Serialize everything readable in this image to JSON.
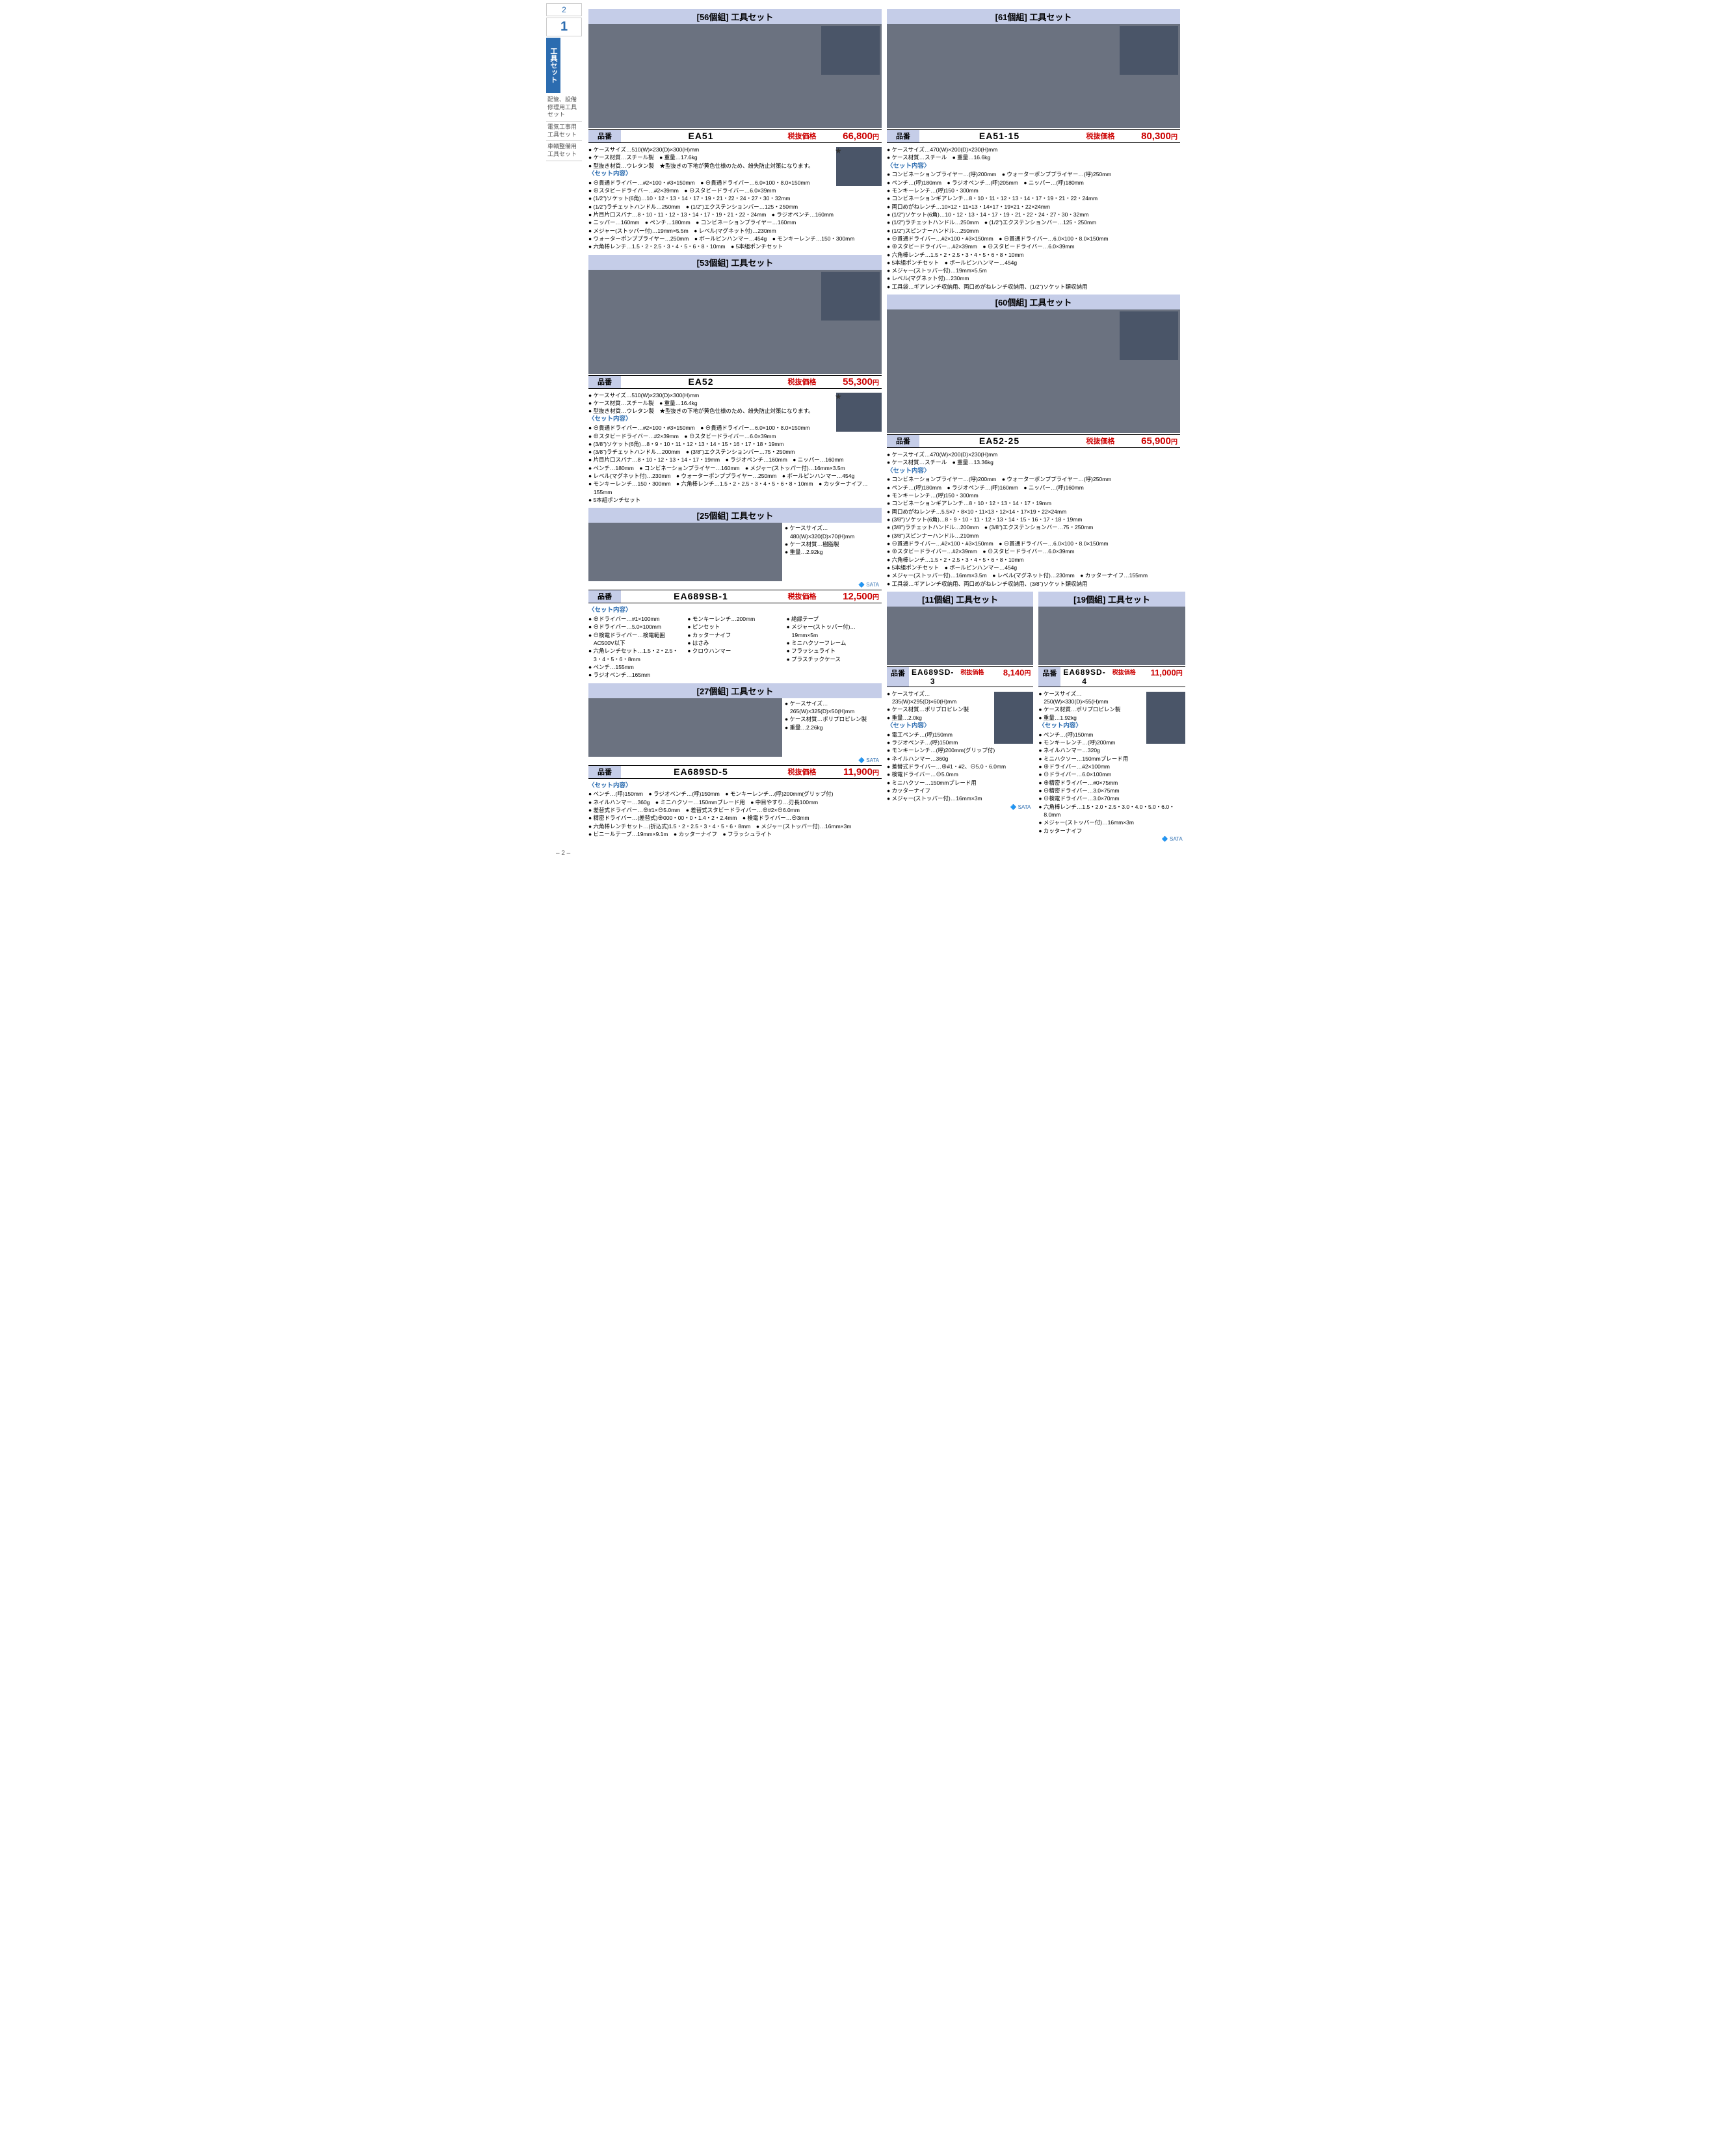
{
  "page_number": "2",
  "sidebar": {
    "num_small": "2",
    "num_big": "1",
    "category": "工具セット",
    "links": [
      "配管、設備修理用工具セット",
      "電気工事用工具セット",
      "車輌整備用工具セット"
    ]
  },
  "colors": {
    "header": "#c5cde8",
    "accent": "#2b6cb0",
    "price": "#c00"
  },
  "products": [
    {
      "title": "[56個組] 工具セット",
      "code": "EA51",
      "price": "66,800",
      "top_specs": [
        "ケースサイズ…510(W)×230(D)×300(H)mm",
        "ケース材質…スチール製　● 重量…17.6kg",
        "型抜き材質…ウレタン製　★型抜きの下地が黄色仕様のため、紛失防止対策になります。"
      ],
      "set": [
        "⊖貫通ドライバー…#2×100・#3×150mm　● ⊖貫通ドライバー…6.0×100・8.0×150mm",
        "⊕スタビードライバー…#2×39mm　● ⊖スタビードライバー…6.0×39mm",
        "(1/2\")ソケット(6角)…10・12・13・14・17・19・21・22・24・27・30・32mm",
        "(1/2\")ラチェットハンドル…250mm　● (1/2\")エクステンションバー…125・250mm",
        "片目片口スパナ…8・10・11・12・13・14・17・19・21・22・24mm　● ラジオペンチ…160mm",
        "ニッパー…160mm　● ペンチ…180mm　● コンビネーションプライヤー…160mm",
        "メジャー(ストッパー付)…19mm×5.5m　● レベル(マグネット付)…230mm",
        "ウォーターポンププライヤー…250mm　● ボールピンハンマー…454g　● モンキーレンチ…150・300mm",
        "六角棒レンチ…1.5・2・2.5・3・4・5・6・8・10mm　● 5本組ポンチセット"
      ]
    },
    {
      "title": "[61個組] 工具セット",
      "code": "EA51-15",
      "price": "80,300",
      "top_specs": [
        "ケースサイズ…470(W)×200(D)×230(H)mm",
        "ケース材質…スチール　● 重量…16.6kg"
      ],
      "set": [
        "コンビネーションプライヤー…(呼)200mm　● ウォーターポンププライヤー…(呼)250mm",
        "ペンチ…(呼)180mm　● ラジオペンチ…(呼)205mm　● ニッパー…(呼)180mm",
        "モンキーレンチ…(呼)150・300mm",
        "コンビネーションギアレンチ…8・10・11・12・13・14・17・19・21・22・24mm",
        "両口めがねレンチ…10×12・11×13・14×17・19×21・22×24mm",
        "(1/2\")ソケット(6角)…10・12・13・14・17・19・21・22・24・27・30・32mm",
        "(1/2\")ラチェットハンドル…250mm　● (1/2\")エクステンションバー…125・250mm",
        "(1/2\")スピンナーハンドル…250mm",
        "⊖貫通ドライバー…#2×100・#3×150mm　● ⊖貫通ドライバー…6.0×100・8.0×150mm",
        "⊕スタビードライバー…#2×39mm　● ⊖スタビードライバー…6.0×39mm",
        "六角棒レンチ…1.5・2・2.5・3・4・5・6・8・10mm",
        "5本組ポンチセット　● ボールピンハンマー…454g",
        "メジャー(ストッパー付)…19mm×5.5m",
        "レベル(マグネット付)…230mm",
        "工具袋…ギアレンチ収納用、両口めがねレンチ収納用、(1/2\")ソケット類収納用"
      ]
    },
    {
      "title": "[53個組] 工具セット",
      "code": "EA52",
      "price": "55,300",
      "top_specs": [
        "ケースサイズ…510(W)×230(D)×300(H)mm",
        "ケース材質…スチール製　● 重量…16.4kg",
        "型抜き材質…ウレタン製　★型抜きの下地が黄色仕様のため、紛失防止対策になります。"
      ],
      "set": [
        "⊖貫通ドライバー…#2×100・#3×150mm　● ⊖貫通ドライバー…6.0×100・8.0×150mm",
        "⊕スタビードライバー…#2×39mm　● ⊖スタビードライバー…6.0×39mm",
        "(3/8\")ソケット(6角)…8・9・10・11・12・13・14・15・16・17・18・19mm",
        "(3/8\")ラチェットハンドル…200mm　● (3/8\")エクステンションバー…75・250mm",
        "片目片口スパナ…8・10・12・13・14・17・19mm　● ラジオペンチ…160mm　● ニッパー…160mm",
        "ペンチ…180mm　● コンビネーションプライヤー…160mm　● メジャー(ストッパー付)…16mm×3.5m",
        "レベル(マグネット付)…230mm　● ウォーターポンププライヤー…250mm　● ボールピンハンマー…454g",
        "モンキーレンチ…150・300mm　● 六角棒レンチ…1.5・2・2.5・3・4・5・6・8・10mm　● カッターナイフ…155mm",
        "5本組ポンチセット"
      ]
    },
    {
      "title": "[60個組] 工具セット",
      "code": "EA52-25",
      "price": "65,900",
      "top_specs": [
        "ケースサイズ…470(W)×200(D)×230(H)mm",
        "ケース材質…スチール　● 重量…13.36kg"
      ],
      "set": [
        "コンビネーションプライヤー…(呼)200mm　● ウォーターポンププライヤー…(呼)250mm",
        "ペンチ…(呼)180mm　● ラジオペンチ…(呼)160mm　● ニッパー…(呼)160mm",
        "モンキーレンチ…(呼)150・300mm",
        "コンビネーションギアレンチ…8・10・12・13・14・17・19mm",
        "両口めがねレンチ…5.5×7・8×10・11×13・12×14・17×19・22×24mm",
        "(3/8\")ソケット(6角)…8・9・10・11・12・13・14・15・16・17・18・19mm",
        "(3/8\")ラチェットハンドル…200mm　● (3/8\")エクステンションバー…75・250mm",
        "(3/8\")スピンナーハンドル…210mm",
        "⊖貫通ドライバー…#2×100・#3×150mm　● ⊖貫通ドライバー…6.0×100・8.0×150mm",
        "⊕スタビードライバー…#2×39mm　● ⊖スタビードライバー…6.0×39mm",
        "六角棒レンチ…1.5・2・2.5・3・4・5・6・8・10mm",
        "5本組ポンチセット　● ボールピンハンマー…454g",
        "メジャー(ストッパー付)…16mm×3.5m　● レベル(マグネット付)…230mm　● カッターナイフ…155mm",
        "工具袋…ギアレンチ収納用、両口めがねレンチ収納用、(3/8\")ソケット類収納用"
      ]
    },
    {
      "title": "[25個組] 工具セット",
      "code": "EA689SB-1",
      "price": "12,500",
      "brand": "🔷 SATA",
      "side_specs": [
        "ケースサイズ…480(W)×320(D)×70(H)mm",
        "ケース材質…樹脂製",
        "重量…2.92kg"
      ],
      "set_cols": [
        [
          "⊕ドライバー…#1×100mm",
          "⊖ドライバー…5.0×100mm",
          "⊖検電ドライバー…検電範囲AC500V以下",
          "六角レンチセット…1.5・2・2.5・3・4・5・6・8mm",
          "ペンチ…155mm",
          "ラジオペンチ…165mm"
        ],
        [
          "モンキーレンチ…200mm",
          "ピンセット",
          "カッターナイフ",
          "はさみ",
          "クロウハンマー"
        ],
        [
          "絶縁テープ",
          "メジャー(ストッパー付)…19mm×5m",
          "ミニハクソーフレーム",
          "フラッシュライト",
          "プラスチックケース"
        ]
      ]
    },
    {
      "title": "[27個組] 工具セット",
      "code": "EA689SD-5",
      "price": "11,900",
      "brand": "🔷 SATA",
      "side_specs": [
        "ケースサイズ…265(W)×325(D)×50(H)mm",
        "ケース材質…ポリプロピレン製",
        "重量…2.26kg"
      ],
      "set": [
        "ペンチ…(呼)150mm　● ラジオペンチ…(呼)150mm　● モンキーレンチ…(呼)200mm(グリップ付)",
        "ネイルハンマー…360g　● ミニハクソー…150mmブレード用　● 中目やすり…刃長100mm",
        "差替式ドライバー…⊕#1×⊖5.0mm　● 差替式スタビードライバー…⊕#2×⊖6.0mm",
        "精密ドライバー…(差替式)⊕000・00・0・1.4・2・2.4mm　● 検電ドライバー…⊖3mm",
        "六角棒レンチセット…(折込式)1.5・2・2.5・3・4・5・6・8mm　● メジャー(ストッパー付)…16mm×3m",
        "ビニールテープ…19mm×9.1m　● カッターナイフ　● フラッシュライト"
      ]
    },
    {
      "title": "[11個組] 工具セット",
      "code": "EA689SD-3",
      "price": "8,140",
      "brand": "🔷 SATA",
      "top_specs": [
        "ケースサイズ…235(W)×295(D)×60(H)mm",
        "ケース材質…ポリプロピレン製",
        "重量…2.0kg"
      ],
      "set": [
        "電工ペンチ…(呼)150mm",
        "ラジオペンチ…(呼)150mm",
        "モンキーレンチ…(呼)200mm(グリップ付)",
        "ネイルハンマー…360g",
        "差替式ドライバー…⊕#1・#2、⊖5.0・6.0mm",
        "検電ドライバー…⊖5.0mm",
        "ミニハクソー…150mmブレード用",
        "カッターナイフ",
        "メジャー(ストッパー付)…16mm×3m"
      ]
    },
    {
      "title": "[19個組] 工具セット",
      "code": "EA689SD-4",
      "price": "11,000",
      "brand": "🔷 SATA",
      "top_specs": [
        "ケースサイズ…250(W)×330(D)×55(H)mm",
        "ケース材質…ポリプロピレン製",
        "重量…1.92kg"
      ],
      "set": [
        "ペンチ…(呼)150mm",
        "モンキーレンチ…(呼)200mm",
        "ネイルハンマー…320g",
        "ミニハクソー…150mmブレード用",
        "⊕ドライバー…#2×100mm",
        "⊖ドライバー…6.0×100mm",
        "⊕精密ドライバー…#0×75mm",
        "⊖精密ドライバー…3.0×75mm",
        "⊖検電ドライバー…3.0×70mm",
        "六角棒レンチ…1.5・2.0・2.5・3.0・4.0・5.0・6.0・8.0mm",
        "メジャー(ストッパー付)…16mm×3m",
        "カッターナイフ"
      ]
    }
  ],
  "labels": {
    "code": "品番",
    "price": "税抜価格",
    "yen": "円",
    "set": "〈セット内容〉"
  }
}
